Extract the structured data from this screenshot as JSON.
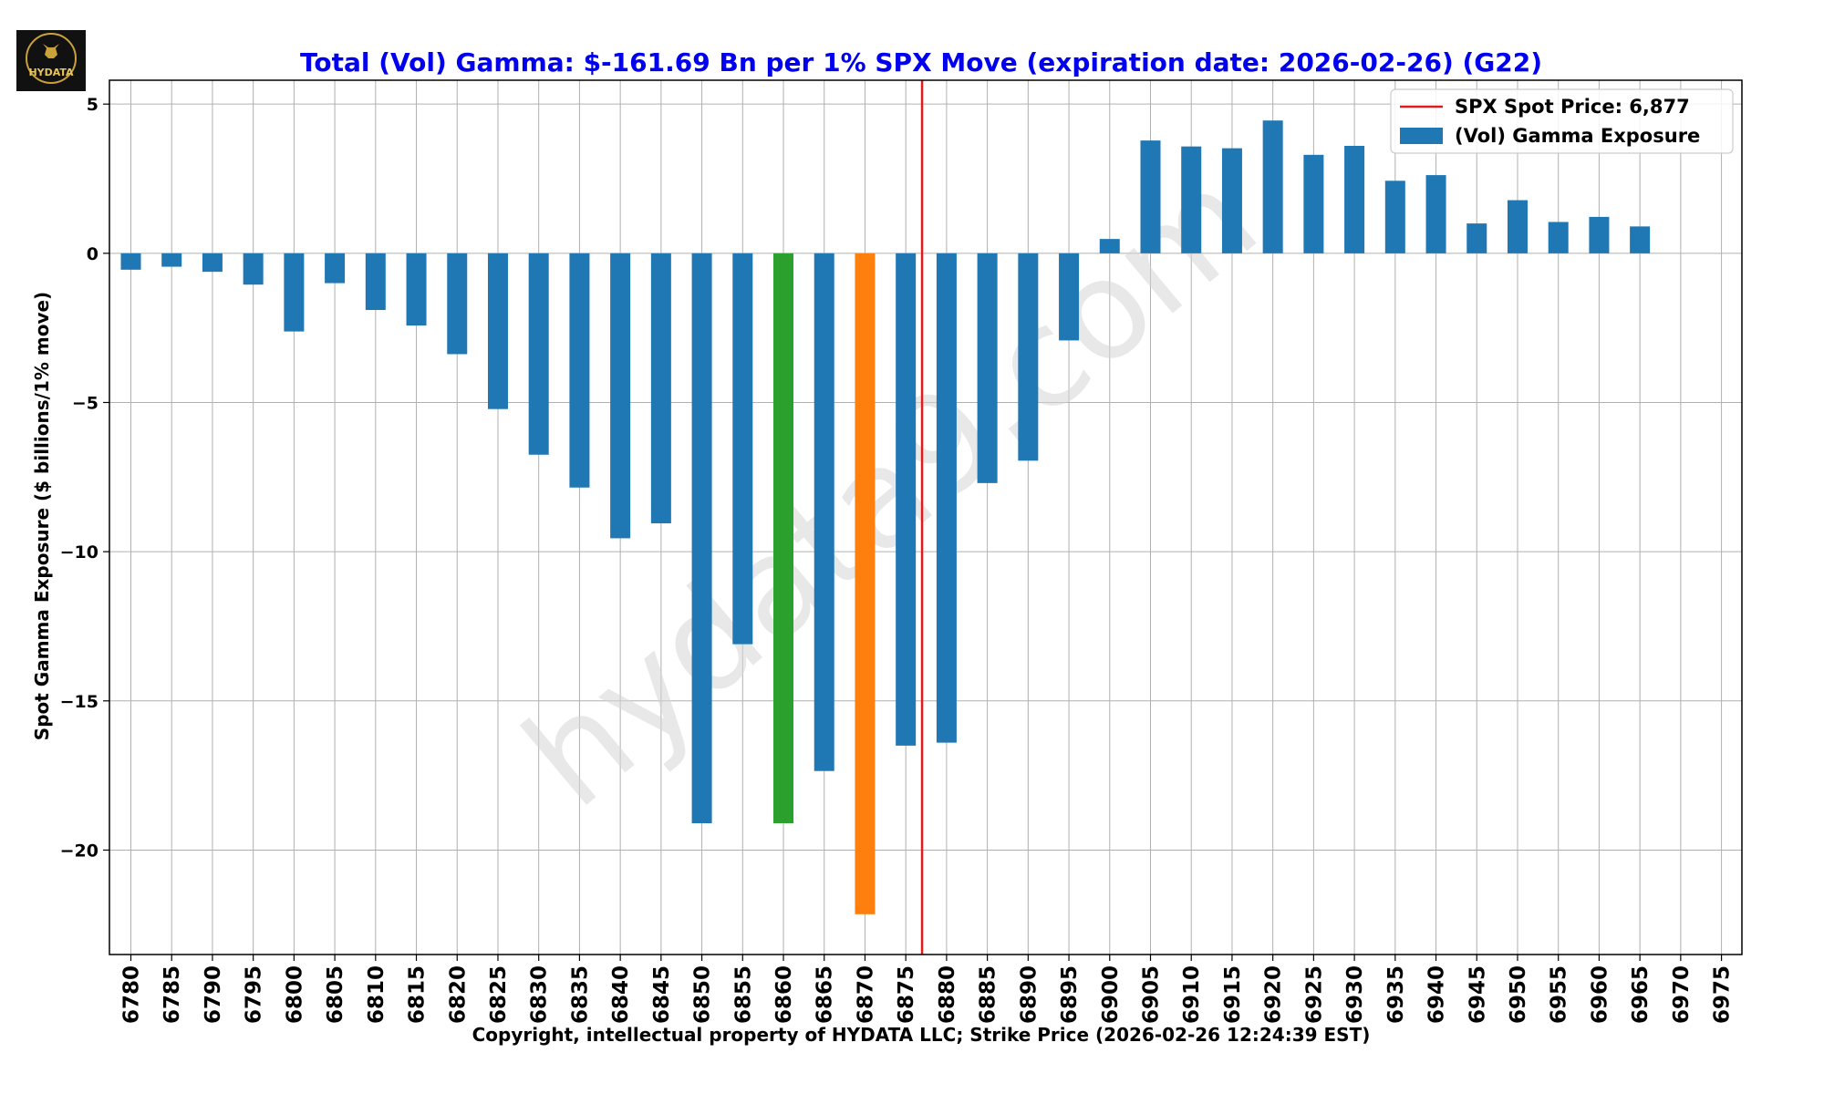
{
  "logo": {
    "text": "HYDATA"
  },
  "chart_data": {
    "type": "bar",
    "title": "Total (Vol) Gamma: $-161.69 Bn per 1% SPX Move (expiration date: 2026-02-26) (G22)",
    "xlabel": "Copyright, intellectual property of HYDATA LLC; Strike Price (2026-02-26 12:24:39 EST)",
    "ylabel": "Spot Gamma Exposure ($ billions/1% move)",
    "watermark": "hydata9.com",
    "categories": [
      "6780",
      "6785",
      "6790",
      "6795",
      "6800",
      "6805",
      "6810",
      "6815",
      "6820",
      "6825",
      "6830",
      "6835",
      "6840",
      "6845",
      "6850",
      "6855",
      "6860",
      "6865",
      "6870",
      "6875",
      "6880",
      "6885",
      "6890",
      "6895",
      "6900",
      "6905",
      "6910",
      "6915",
      "6920",
      "6925",
      "6930",
      "6935",
      "6940",
      "6945",
      "6950",
      "6955",
      "6960",
      "6965",
      "6970",
      "6975"
    ],
    "values": [
      -0.55,
      -0.45,
      -0.62,
      -1.05,
      -2.62,
      -1.0,
      -1.9,
      -2.42,
      -3.38,
      -5.22,
      -6.75,
      -7.85,
      -9.55,
      -9.05,
      -19.1,
      -13.1,
      -19.1,
      -17.35,
      -22.15,
      -16.5,
      -16.4,
      -7.7,
      -6.95,
      -2.92,
      0.48,
      3.78,
      3.58,
      3.52,
      4.45,
      3.3,
      3.6,
      2.43,
      2.62,
      1.0,
      1.78,
      1.05,
      1.22,
      0.9,
      0,
      0
    ],
    "highlight_colors": {
      "6860": "#2ca02c",
      "6870": "#ff7f0e"
    },
    "ylim": [
      -23.5,
      5.8
    ],
    "yticks": [
      5,
      0,
      -5,
      -10,
      -15,
      -20
    ],
    "ytick_labels": [
      "5",
      "0",
      "−5",
      "−10",
      "−15",
      "−20"
    ],
    "spot_price": 6877,
    "grid": true,
    "legend": {
      "position": "top-right",
      "items": [
        {
          "label": "SPX Spot Price: 6,877",
          "kind": "line",
          "color": "#e31a1c"
        },
        {
          "label": "(Vol) Gamma Exposure",
          "kind": "bar",
          "color": "#1f77b4"
        }
      ]
    }
  },
  "colors": {
    "bar": "#1f77b4",
    "spot_line": "#e31a1c",
    "title": "#0000ee",
    "grid": "#b0b0b0",
    "watermark": "#d9d9d9"
  }
}
